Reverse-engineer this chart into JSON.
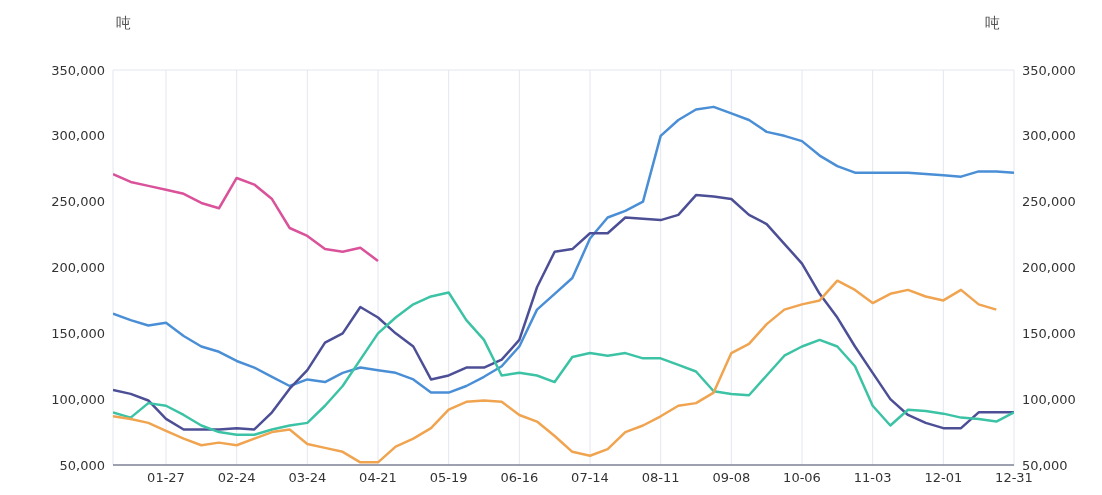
{
  "chart_data": {
    "type": "line",
    "ylabel": "吨",
    "y2label": "吨",
    "categories": [
      null,
      null,
      null,
      "01-27",
      null,
      null,
      null,
      "02-24",
      null,
      null,
      null,
      "03-24",
      null,
      null,
      null,
      "04-21",
      null,
      null,
      null,
      "05-19",
      null,
      null,
      null,
      "06-16",
      null,
      null,
      null,
      "07-14",
      null,
      null,
      null,
      "08-11",
      null,
      null,
      null,
      "09-08",
      null,
      null,
      null,
      "10-06",
      null,
      null,
      null,
      "11-03",
      null,
      null,
      null,
      "12-01",
      null,
      null,
      null,
      "12-31"
    ],
    "series": [
      {
        "color": "#d9529a",
        "values": [
          271000,
          265000,
          262000,
          259000,
          256000,
          249000,
          245000,
          268000,
          263000,
          252000,
          230000,
          224000,
          214000,
          212000,
          215000,
          205000,
          null,
          null,
          null,
          null,
          null,
          null,
          null,
          null,
          null,
          null,
          null,
          null,
          null,
          null,
          null,
          null,
          null,
          null,
          null,
          null,
          null,
          null,
          null,
          null,
          null,
          null,
          null,
          null,
          null,
          null,
          null,
          null,
          null,
          null,
          null,
          null
        ]
      },
      {
        "color": "#4a8fd6",
        "values": [
          165000,
          160000,
          156000,
          158000,
          148000,
          140000,
          136000,
          129000,
          124000,
          117000,
          110000,
          115000,
          113000,
          120000,
          124000,
          122000,
          120000,
          115000,
          105000,
          105000,
          110000,
          117000,
          125000,
          140000,
          168000,
          180000,
          192000,
          222000,
          238000,
          243000,
          250000,
          300000,
          312000,
          320000,
          322000,
          317000,
          312000,
          303000,
          300000,
          296000,
          285000,
          277000,
          272000,
          272000,
          272000,
          272000,
          271000,
          270000,
          269000,
          273000,
          273000,
          272000
        ]
      },
      {
        "color": "#4c4f96",
        "values": [
          107000,
          104000,
          99000,
          85000,
          77000,
          77000,
          77000,
          78000,
          77000,
          90000,
          108000,
          122000,
          143000,
          150000,
          170000,
          162000,
          150000,
          140000,
          115000,
          118000,
          124000,
          124000,
          130000,
          145000,
          185000,
          212000,
          214000,
          226000,
          226000,
          238000,
          237000,
          236000,
          240000,
          255000,
          254000,
          252000,
          240000,
          233000,
          218000,
          203000,
          180000,
          162000,
          140000,
          120000,
          100000,
          88000,
          82000,
          78000,
          78000,
          90000,
          90000,
          90000
        ]
      },
      {
        "color": "#3cc3a5",
        "values": [
          90000,
          86000,
          97000,
          95000,
          88000,
          80000,
          75000,
          73000,
          73000,
          77000,
          80000,
          82000,
          95000,
          110000,
          130000,
          150000,
          162000,
          172000,
          178000,
          181000,
          160000,
          145000,
          118000,
          120000,
          118000,
          113000,
          132000,
          135000,
          133000,
          135000,
          131000,
          131000,
          126000,
          121000,
          106000,
          104000,
          103000,
          118000,
          133000,
          140000,
          145000,
          140000,
          125000,
          95000,
          80000,
          92000,
          91000,
          89000,
          86000,
          85000,
          83000,
          90000
        ]
      },
      {
        "color": "#f0a450",
        "values": [
          87000,
          85000,
          82000,
          76000,
          70000,
          65000,
          67000,
          65000,
          70000,
          75000,
          77000,
          66000,
          63000,
          60000,
          52000,
          52000,
          64000,
          70000,
          78000,
          92000,
          98000,
          99000,
          98000,
          88000,
          83000,
          72000,
          60000,
          57000,
          62000,
          75000,
          80000,
          87000,
          95000,
          97000,
          105000,
          135000,
          142000,
          157000,
          168000,
          172000,
          175000,
          190000,
          183000,
          173000,
          180000,
          183000,
          178000,
          175000,
          183000,
          172000,
          168000,
          null
        ]
      }
    ],
    "ylim": [
      50000,
      350000
    ],
    "yticks": [
      {
        "value": 50000,
        "label": "50,000"
      },
      {
        "value": 100000,
        "label": "100,000"
      },
      {
        "value": 150000,
        "label": "150,000"
      },
      {
        "value": 200000,
        "label": "200,000"
      },
      {
        "value": 250000,
        "label": "250,000"
      },
      {
        "value": 300000,
        "label": "300,000"
      },
      {
        "value": 350000,
        "label": "350,000"
      }
    ],
    "y2lim": [
      50000,
      350000
    ],
    "y2ticks": [
      {
        "value": 50000,
        "label": "50,000"
      },
      {
        "value": 100000,
        "label": "100,000"
      },
      {
        "value": 150000,
        "label": "150,000"
      },
      {
        "value": 200000,
        "label": "200,000"
      },
      {
        "value": 250000,
        "label": "250,000"
      },
      {
        "value": 300000,
        "label": "300,000"
      },
      {
        "value": 350000,
        "label": "350,000"
      }
    ],
    "grid": true,
    "legend": false
  }
}
